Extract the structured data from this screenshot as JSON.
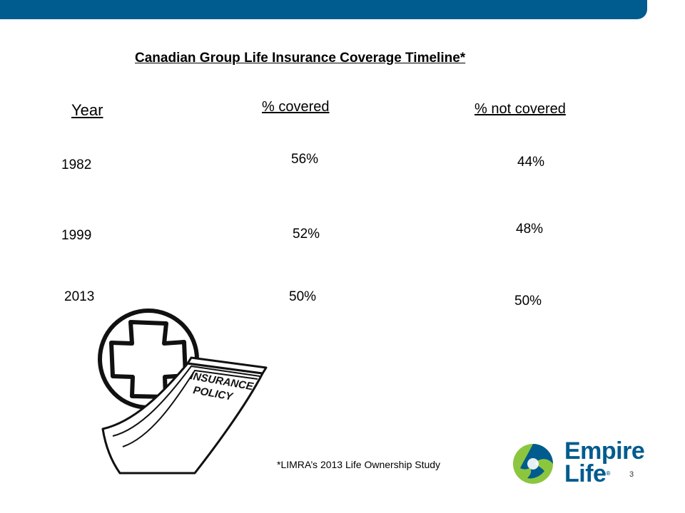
{
  "title": "Canadian Group Life Insurance Coverage Timeline*",
  "columns": {
    "year": "Year",
    "covered": "% covered",
    "not_covered": "% not covered"
  },
  "rows": [
    {
      "year": "1982",
      "covered": "56%",
      "not_covered": "44%"
    },
    {
      "year": "1999",
      "covered": "52%",
      "not_covered": "48%"
    },
    {
      "year": "2013",
      "covered": "50%",
      "not_covered": "50%"
    }
  ],
  "illustration": {
    "line1": "INSURANCE",
    "line2": "POLICY"
  },
  "footnote": "*LIMRA’s 2013 Life Ownership Study",
  "logo": {
    "line1": "Empire",
    "line2": "Life",
    "reg": "®",
    "colors": {
      "green": "#8cc63f",
      "blue": "#005b8e"
    }
  },
  "page_number": "3"
}
